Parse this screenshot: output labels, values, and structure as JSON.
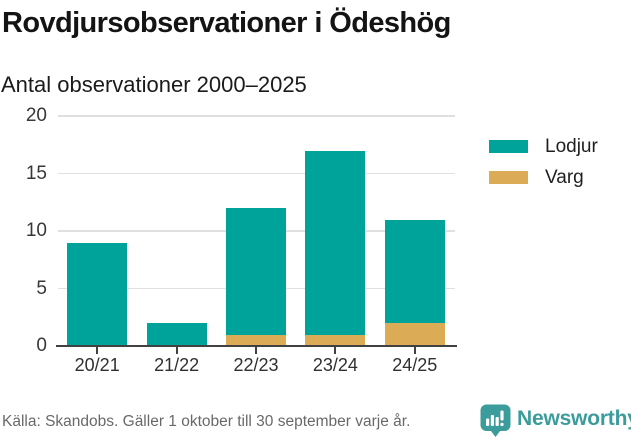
{
  "title": "Rovdjursobservationer i Ödeshög",
  "subtitle": "Antal observationer 2000–2025",
  "footer": {
    "source": "Källa: Skandobs. Gäller 1 oktober till 30 september varje år.",
    "brand": "Newsworthy",
    "brand_icon": "speech-bubble-with-bar-chart-and-exclamation"
  },
  "colors": {
    "lodjur": "#00A39A",
    "varg": "#DBAC55",
    "grid": "#E0E0E0",
    "axis": "#414141",
    "brand_teal": "#3C9C9C"
  },
  "chart_data": {
    "type": "bar",
    "stacked": true,
    "title": "Rovdjursobservationer i Ödeshög",
    "subtitle": "Antal observationer 2000–2025",
    "categories": [
      "20/21",
      "21/22",
      "22/23",
      "23/24",
      "24/25"
    ],
    "series": [
      {
        "name": "Lodjur",
        "color": "#00A39A",
        "values": [
          9,
          2,
          11,
          16,
          9
        ]
      },
      {
        "name": "Varg",
        "color": "#DBAC55",
        "values": [
          0,
          0,
          1,
          1,
          2
        ]
      }
    ],
    "stack_order_bottom_to_top": [
      "Varg",
      "Lodjur"
    ],
    "stack_totals": [
      9,
      2,
      12,
      17,
      11
    ],
    "xlabel": "",
    "ylabel": "",
    "ylim": [
      0,
      20
    ],
    "yticks": [
      0,
      5,
      10,
      15,
      20
    ],
    "grid": "horizontal-light",
    "legend_position": "right"
  }
}
